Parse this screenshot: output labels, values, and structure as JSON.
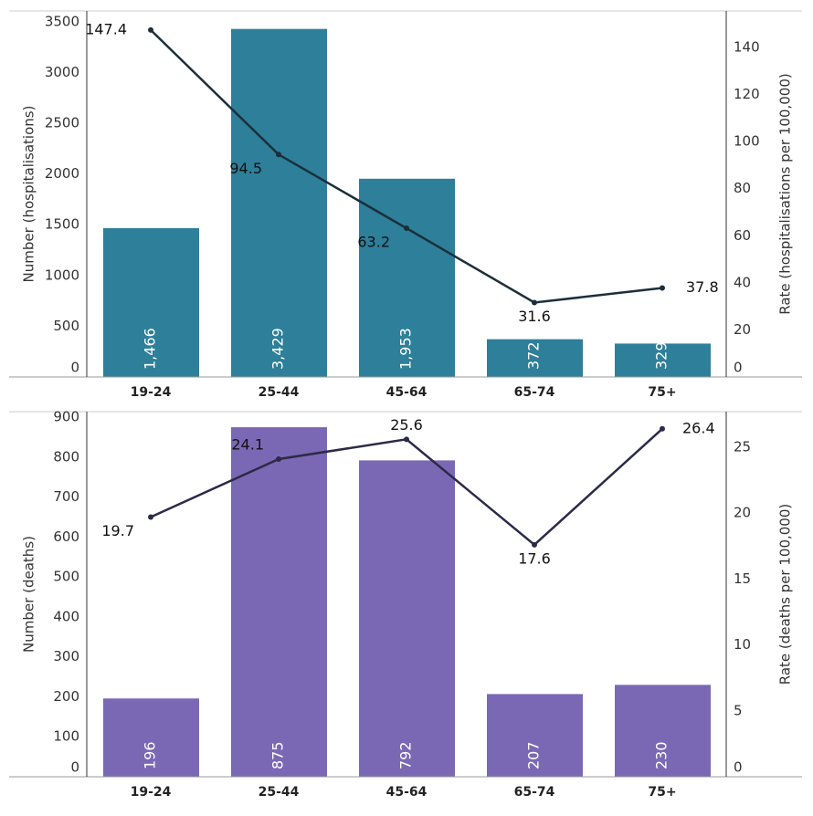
{
  "chart_data": [
    {
      "type": "combo",
      "categories": [
        "19-24",
        "25-44",
        "45-64",
        "65-74",
        "75+"
      ],
      "ylabel": "Number (hospitalisations)",
      "y2label": "Rate (hospitalisations per 100,000)",
      "ylim": [
        0,
        3606
      ],
      "yticks": [
        0,
        500,
        1000,
        1500,
        2000,
        2500,
        3000,
        3500
      ],
      "y2lim": [
        0,
        155.5
      ],
      "y2ticks": [
        0,
        20,
        40,
        60,
        80,
        100,
        120,
        140
      ],
      "series": [
        {
          "type": "bar",
          "color": "#2e7f9a",
          "values": [
            1466,
            3429,
            1953,
            372,
            329
          ],
          "value_labels": [
            "1,466",
            "3,429",
            "1,953",
            "372",
            "329"
          ]
        },
        {
          "type": "line",
          "axis": "y2",
          "color": "#1b2f3b",
          "values": [
            147.4,
            94.5,
            63.2,
            31.6,
            37.8
          ]
        }
      ]
    },
    {
      "type": "combo",
      "categories": [
        "19-24",
        "25-44",
        "45-64",
        "65-74",
        "75+"
      ],
      "ylabel": "Number (deaths)",
      "y2label": "Rate (deaths per 100,000)",
      "ylim": [
        0,
        914
      ],
      "yticks": [
        0,
        100,
        200,
        300,
        400,
        500,
        600,
        700,
        800,
        900
      ],
      "y2lim": [
        0,
        27.7
      ],
      "y2ticks": [
        0,
        5,
        10,
        15,
        20,
        25
      ],
      "series": [
        {
          "type": "bar",
          "color": "#7b68b5",
          "values": [
            196,
            875,
            792,
            207,
            230
          ]
        },
        {
          "type": "line",
          "axis": "y2",
          "color": "#2b2a48",
          "values": [
            19.7,
            24.1,
            25.6,
            17.6,
            26.4
          ]
        }
      ]
    }
  ]
}
